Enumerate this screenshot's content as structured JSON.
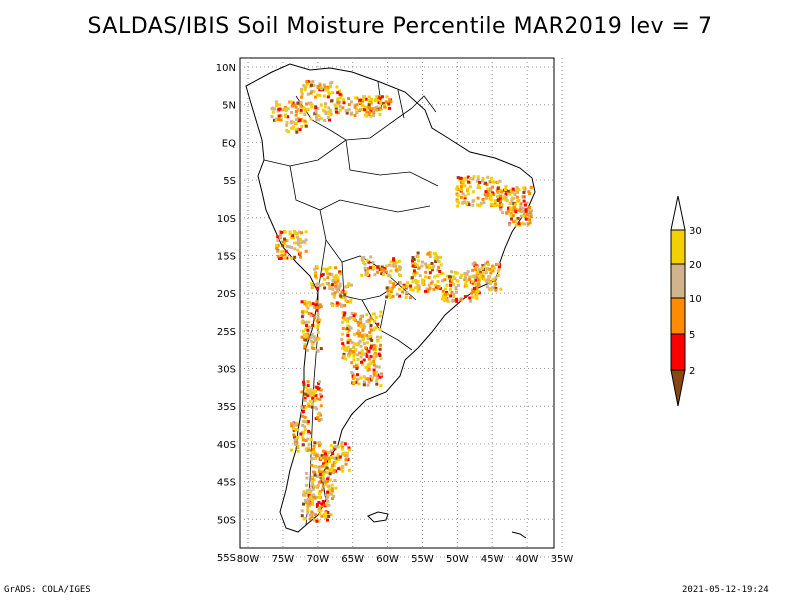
{
  "title": "SALDAS/IBIS Soil Moisture Percentile MAR2019 lev = 7",
  "map": {
    "lat_labels": [
      "10N",
      "5N",
      "EQ",
      "5S",
      "10S",
      "15S",
      "20S",
      "25S",
      "30S",
      "35S",
      "40S",
      "45S",
      "50S",
      "55S"
    ],
    "lon_labels": [
      "80W",
      "75W",
      "70W",
      "65W",
      "60W",
      "55W",
      "50W",
      "45W",
      "40W",
      "35W"
    ],
    "lat_range": [
      10,
      -55
    ],
    "lon_range": [
      -80,
      -35
    ],
    "grid": true,
    "grid_style": "dotted"
  },
  "legend": {
    "placement": "right",
    "levels": [
      "30",
      "20",
      "10",
      "5",
      "2"
    ],
    "colors": {
      "above_30": "#ffffff",
      "20-30": "#f4d000",
      "10-20": "#d2b48c",
      "5-10": "#ff8c00",
      "2-5": "#ff0000",
      "below_2": "#8b4513"
    }
  },
  "footer": {
    "left": "GrADS: COLA/IGES",
    "right": "2021-05-12-19:24"
  }
}
